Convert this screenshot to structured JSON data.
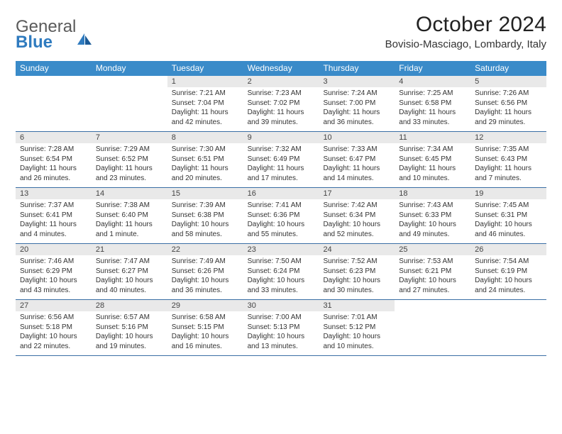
{
  "logo": {
    "text1": "General",
    "text2": "Blue"
  },
  "title": "October 2024",
  "location": "Bovisio-Masciago, Lombardy, Italy",
  "colors": {
    "header_bg": "#3a8bc9",
    "header_text": "#ffffff",
    "daynum_bg": "#e9e9e9",
    "border": "#3a6fa5",
    "logo_gray": "#5a5a5a",
    "logo_blue": "#2f7bbf"
  },
  "daysOfWeek": [
    "Sunday",
    "Monday",
    "Tuesday",
    "Wednesday",
    "Thursday",
    "Friday",
    "Saturday"
  ],
  "startOffset": 2,
  "days": [
    {
      "n": 1,
      "sr": "7:21 AM",
      "ss": "7:04 PM",
      "dl": "11 hours and 42 minutes."
    },
    {
      "n": 2,
      "sr": "7:23 AM",
      "ss": "7:02 PM",
      "dl": "11 hours and 39 minutes."
    },
    {
      "n": 3,
      "sr": "7:24 AM",
      "ss": "7:00 PM",
      "dl": "11 hours and 36 minutes."
    },
    {
      "n": 4,
      "sr": "7:25 AM",
      "ss": "6:58 PM",
      "dl": "11 hours and 33 minutes."
    },
    {
      "n": 5,
      "sr": "7:26 AM",
      "ss": "6:56 PM",
      "dl": "11 hours and 29 minutes."
    },
    {
      "n": 6,
      "sr": "7:28 AM",
      "ss": "6:54 PM",
      "dl": "11 hours and 26 minutes."
    },
    {
      "n": 7,
      "sr": "7:29 AM",
      "ss": "6:52 PM",
      "dl": "11 hours and 23 minutes."
    },
    {
      "n": 8,
      "sr": "7:30 AM",
      "ss": "6:51 PM",
      "dl": "11 hours and 20 minutes."
    },
    {
      "n": 9,
      "sr": "7:32 AM",
      "ss": "6:49 PM",
      "dl": "11 hours and 17 minutes."
    },
    {
      "n": 10,
      "sr": "7:33 AM",
      "ss": "6:47 PM",
      "dl": "11 hours and 14 minutes."
    },
    {
      "n": 11,
      "sr": "7:34 AM",
      "ss": "6:45 PM",
      "dl": "11 hours and 10 minutes."
    },
    {
      "n": 12,
      "sr": "7:35 AM",
      "ss": "6:43 PM",
      "dl": "11 hours and 7 minutes."
    },
    {
      "n": 13,
      "sr": "7:37 AM",
      "ss": "6:41 PM",
      "dl": "11 hours and 4 minutes."
    },
    {
      "n": 14,
      "sr": "7:38 AM",
      "ss": "6:40 PM",
      "dl": "11 hours and 1 minute."
    },
    {
      "n": 15,
      "sr": "7:39 AM",
      "ss": "6:38 PM",
      "dl": "10 hours and 58 minutes."
    },
    {
      "n": 16,
      "sr": "7:41 AM",
      "ss": "6:36 PM",
      "dl": "10 hours and 55 minutes."
    },
    {
      "n": 17,
      "sr": "7:42 AM",
      "ss": "6:34 PM",
      "dl": "10 hours and 52 minutes."
    },
    {
      "n": 18,
      "sr": "7:43 AM",
      "ss": "6:33 PM",
      "dl": "10 hours and 49 minutes."
    },
    {
      "n": 19,
      "sr": "7:45 AM",
      "ss": "6:31 PM",
      "dl": "10 hours and 46 minutes."
    },
    {
      "n": 20,
      "sr": "7:46 AM",
      "ss": "6:29 PM",
      "dl": "10 hours and 43 minutes."
    },
    {
      "n": 21,
      "sr": "7:47 AM",
      "ss": "6:27 PM",
      "dl": "10 hours and 40 minutes."
    },
    {
      "n": 22,
      "sr": "7:49 AM",
      "ss": "6:26 PM",
      "dl": "10 hours and 36 minutes."
    },
    {
      "n": 23,
      "sr": "7:50 AM",
      "ss": "6:24 PM",
      "dl": "10 hours and 33 minutes."
    },
    {
      "n": 24,
      "sr": "7:52 AM",
      "ss": "6:23 PM",
      "dl": "10 hours and 30 minutes."
    },
    {
      "n": 25,
      "sr": "7:53 AM",
      "ss": "6:21 PM",
      "dl": "10 hours and 27 minutes."
    },
    {
      "n": 26,
      "sr": "7:54 AM",
      "ss": "6:19 PM",
      "dl": "10 hours and 24 minutes."
    },
    {
      "n": 27,
      "sr": "6:56 AM",
      "ss": "5:18 PM",
      "dl": "10 hours and 22 minutes."
    },
    {
      "n": 28,
      "sr": "6:57 AM",
      "ss": "5:16 PM",
      "dl": "10 hours and 19 minutes."
    },
    {
      "n": 29,
      "sr": "6:58 AM",
      "ss": "5:15 PM",
      "dl": "10 hours and 16 minutes."
    },
    {
      "n": 30,
      "sr": "7:00 AM",
      "ss": "5:13 PM",
      "dl": "10 hours and 13 minutes."
    },
    {
      "n": 31,
      "sr": "7:01 AM",
      "ss": "5:12 PM",
      "dl": "10 hours and 10 minutes."
    }
  ],
  "labels": {
    "sunrise": "Sunrise: ",
    "sunset": "Sunset: ",
    "daylight": "Daylight: "
  }
}
